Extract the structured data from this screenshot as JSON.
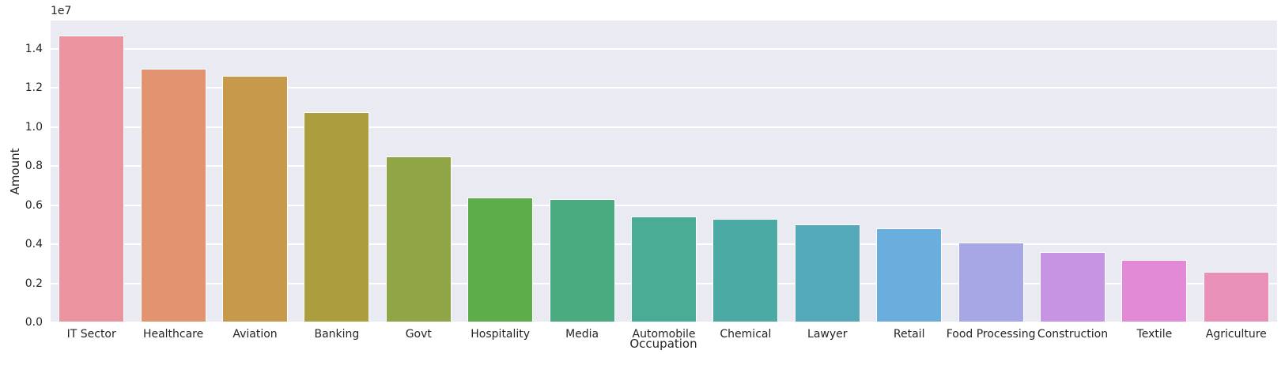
{
  "chart_data": {
    "type": "bar",
    "title": "",
    "xlabel": "Occupation",
    "ylabel": "Amount",
    "y_offset_label": "1e7",
    "categories": [
      "IT Sector",
      "Healthcare",
      "Aviation",
      "Banking",
      "Govt",
      "Hospitality",
      "Media",
      "Automobile",
      "Chemical",
      "Lawyer",
      "Retail",
      "Food Processing",
      "Construction",
      "Textile",
      "Agriculture"
    ],
    "values": [
      14700000,
      13000000,
      12600000,
      10750000,
      8500000,
      6400000,
      6300000,
      5400000,
      5300000,
      5000000,
      4800000,
      4100000,
      3600000,
      3200000,
      2600000
    ],
    "bar_colors": [
      "#e9949e",
      "#e29370",
      "#c79a4b",
      "#ac9d3f",
      "#90a545",
      "#5dae4b",
      "#4bab80",
      "#49ac95",
      "#4caaa4",
      "#54a9b8",
      "#69aedd",
      "#a8a7e6",
      "#c794e4",
      "#e38ad6",
      "#e890b8"
    ],
    "ylim": [
      0,
      15450000
    ],
    "yticks": [
      0,
      2000000,
      4000000,
      6000000,
      8000000,
      10000000,
      12000000,
      14000000
    ],
    "ytick_labels": [
      "0.0",
      "0.2",
      "0.4",
      "0.6",
      "0.8",
      "1.0",
      "1.2",
      "1.4"
    ],
    "grid": true,
    "legend_position": "none",
    "plot_bg": "#eaeaf2",
    "grid_color": "#ffffff",
    "text_color": "#262626"
  }
}
